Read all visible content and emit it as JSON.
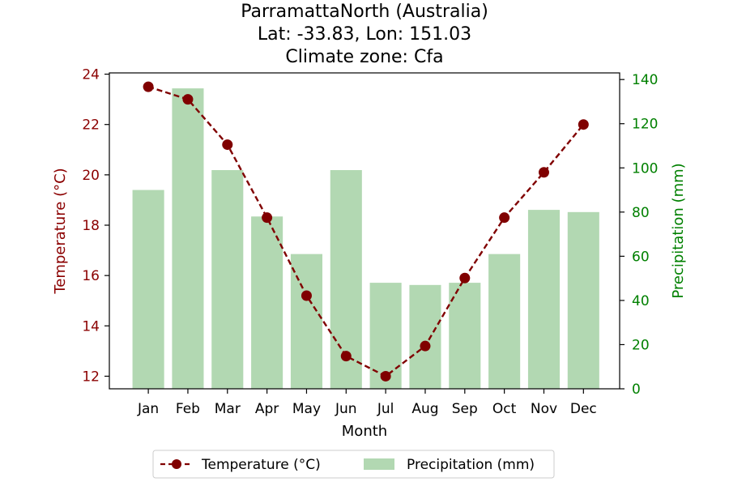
{
  "chart_data": {
    "type": "bar+line",
    "title_lines": [
      "ParramattaNorth (Australia)",
      "Lat: -33.83, Lon: 151.03",
      "Climate zone: Cfa"
    ],
    "xlabel": "Month",
    "categories": [
      "Jan",
      "Feb",
      "Mar",
      "Apr",
      "May",
      "Jun",
      "Jul",
      "Aug",
      "Sep",
      "Oct",
      "Nov",
      "Dec"
    ],
    "temperature": {
      "name": "Temperature (°C)",
      "axis_label": "Temperature (°C)",
      "values": [
        23.5,
        23.0,
        21.2,
        18.3,
        15.2,
        12.8,
        12.0,
        13.2,
        15.9,
        18.3,
        20.1,
        22.0
      ],
      "ylim": [
        11.5,
        24.05
      ],
      "ticks": [
        12,
        14,
        16,
        18,
        20,
        22,
        24
      ],
      "color": "#800000",
      "axis_color": "#8b0000"
    },
    "precipitation": {
      "name": "Precipitation (mm)",
      "axis_label": "Precipitation (mm)",
      "values": [
        90,
        136,
        99,
        78,
        61,
        99,
        48,
        47,
        48,
        61,
        81,
        80
      ],
      "ylim": [
        0,
        143
      ],
      "ticks": [
        0,
        20,
        40,
        60,
        80,
        100,
        120,
        140
      ],
      "color": "#b2d8b2",
      "axis_color": "#008000"
    },
    "legend_position": "bottom-center"
  }
}
